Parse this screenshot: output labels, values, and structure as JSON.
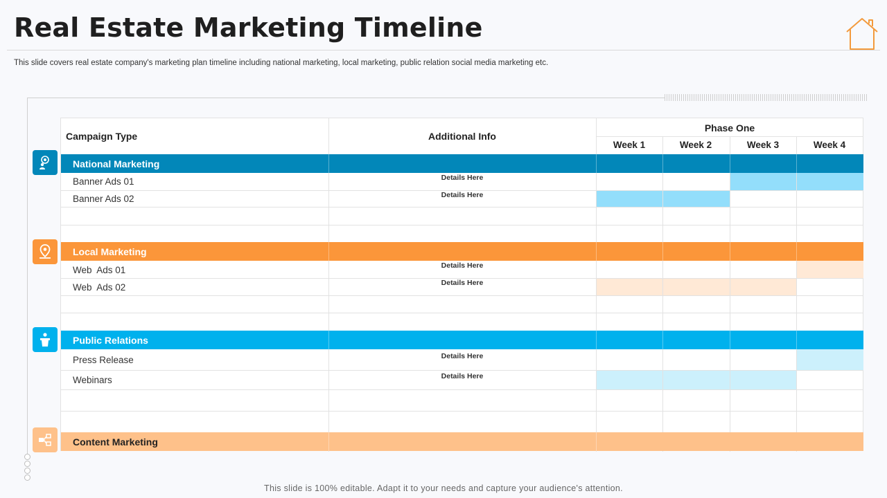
{
  "title": "Real Estate Marketing Timeline",
  "subtitle": "This slide covers real estate company's marketing plan timeline including national marketing, local marketing, public relation social media marketing etc.",
  "table": {
    "col_campaign": "Campaign Type",
    "col_info": "Additional Info",
    "phase": "Phase One",
    "weeks": [
      "Week 1",
      "Week 2",
      "Week 3",
      "Week 4"
    ]
  },
  "sections": [
    {
      "label": "National Marketing",
      "icon": "target-person-icon",
      "color": "#0287b9",
      "items": [
        {
          "name": "Banner Ads 01",
          "details": "Details Here",
          "weeks_active": [
            3,
            4
          ],
          "fill": "#93defb"
        },
        {
          "name": "Banner Ads 02",
          "details": "Details Here",
          "weeks_active": [
            1,
            2
          ],
          "fill": "#93defb"
        }
      ]
    },
    {
      "label": "Local Marketing",
      "icon": "map-pin-icon",
      "color": "#fb963a",
      "items": [
        {
          "name": "Web  Ads 01",
          "details": "Details Here",
          "weeks_active": [
            4
          ],
          "fill": "#ffe9d6"
        },
        {
          "name": "Web  Ads 02",
          "details": "Details Here",
          "weeks_active": [
            1,
            2,
            3
          ],
          "fill": "#ffe9d6"
        }
      ]
    },
    {
      "label": "Public Relations",
      "icon": "speaker-podium-icon",
      "color": "#00b1ed",
      "items": [
        {
          "name": "Press Release",
          "details": "Details Here",
          "weeks_active": [
            4
          ],
          "fill": "#ccf0fc"
        },
        {
          "name": "Webinars",
          "details": "Details Here",
          "weeks_active": [
            1,
            2,
            3
          ],
          "fill": "#ccf0fc"
        }
      ]
    },
    {
      "label": "Content Marketing",
      "icon": "content-share-icon",
      "color": "#fec18a",
      "items": []
    }
  ],
  "footer": "This slide is 100% editable. Adapt it to your needs and capture your audience's attention."
}
